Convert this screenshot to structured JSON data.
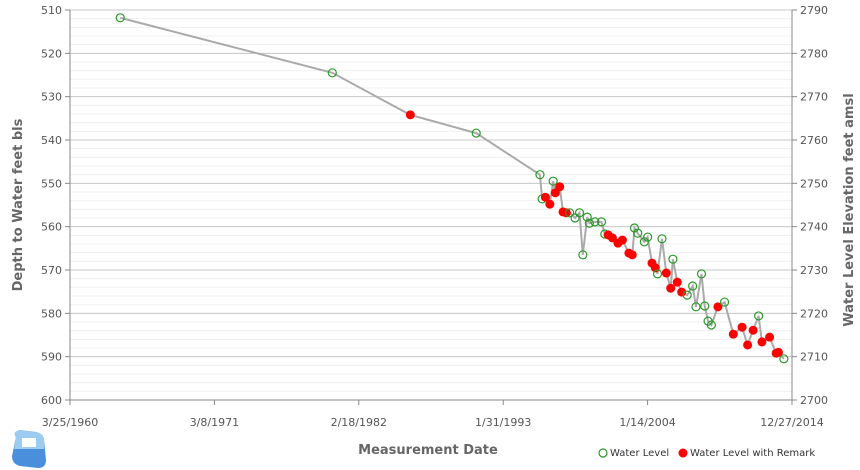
{
  "chart_data": {
    "type": "scatter",
    "xlabel": "Measurement Date",
    "ylabel": "Depth to Water feet bls",
    "y2label": "Water Level Elevation feet amsl",
    "xlim": [
      "1960-03-25",
      "2014-12-27"
    ],
    "xticks": [
      "3/25/1960",
      "3/8/1971",
      "2/18/1982",
      "1/31/1993",
      "1/14/2004",
      "12/27/2014"
    ],
    "xtick_dates": [
      "1960-03-25",
      "1971-03-08",
      "1982-02-18",
      "1993-01-31",
      "2004-01-14",
      "2014-12-27"
    ],
    "ylim": [
      510,
      600
    ],
    "y_inverted": true,
    "yticks": [
      510,
      520,
      530,
      540,
      550,
      560,
      570,
      580,
      590,
      600
    ],
    "y2lim": [
      2790,
      2700
    ],
    "y2ticks": [
      2790,
      2780,
      2770,
      2760,
      2750,
      2740,
      2730,
      2720,
      2710,
      2700
    ],
    "grid": true,
    "legend_position": "bottom-right",
    "series": [
      {
        "name": "Water Level",
        "color": "#2a9a2a",
        "marker": "open-circle"
      },
      {
        "name": "Water Level with Remark",
        "color": "#ff0000",
        "marker": "filled-circle"
      }
    ],
    "line_color": "#aaaaaa",
    "points": [
      [
        "1964-01",
        511.8,
        0
      ],
      [
        "1980-02",
        524.5,
        0
      ],
      [
        "1986-01",
        534.2,
        1
      ],
      [
        "1991-01",
        538.4,
        0
      ],
      [
        "1995-11",
        548.0,
        0
      ],
      [
        "1996-01",
        553.6,
        0
      ],
      [
        "1996-04",
        553.2,
        1
      ],
      [
        "1996-08",
        554.8,
        1
      ],
      [
        "1996-11",
        549.5,
        0
      ],
      [
        "1997-01",
        552.2,
        1
      ],
      [
        "1997-05",
        550.8,
        1
      ],
      [
        "1997-08",
        556.6,
        1
      ],
      [
        "1997-11",
        556.8,
        1
      ],
      [
        "1998-02",
        556.8,
        0
      ],
      [
        "1998-07",
        558.0,
        0
      ],
      [
        "1998-11",
        556.8,
        0
      ],
      [
        "1999-02",
        566.5,
        0
      ],
      [
        "1999-06",
        557.8,
        0
      ],
      [
        "1999-08",
        559.2,
        0
      ],
      [
        "2000-01",
        558.9,
        0
      ],
      [
        "2000-07",
        558.9,
        0
      ],
      [
        "2000-10",
        561.7,
        0
      ],
      [
        "2001-01",
        561.9,
        1
      ],
      [
        "2001-05",
        562.6,
        1
      ],
      [
        "2001-10",
        563.8,
        1
      ],
      [
        "2002-02",
        563.1,
        1
      ],
      [
        "2002-08",
        566.1,
        1
      ],
      [
        "2002-11",
        566.5,
        1
      ],
      [
        "2003-01",
        560.3,
        0
      ],
      [
        "2003-04",
        561.5,
        0
      ],
      [
        "2003-10",
        563.5,
        0
      ],
      [
        "2004-01",
        562.4,
        0
      ],
      [
        "2004-05",
        568.4,
        1
      ],
      [
        "2004-08",
        569.5,
        1
      ],
      [
        "2004-10",
        570.9,
        0
      ],
      [
        "2005-02",
        562.8,
        0
      ],
      [
        "2005-06",
        570.7,
        1
      ],
      [
        "2005-10",
        574.2,
        1
      ],
      [
        "2005-12",
        567.5,
        0
      ],
      [
        "2006-04",
        572.8,
        1
      ],
      [
        "2006-08",
        575.1,
        1
      ],
      [
        "2007-01",
        575.8,
        0
      ],
      [
        "2007-06",
        573.7,
        0
      ],
      [
        "2007-09",
        578.5,
        0
      ],
      [
        "2008-02",
        570.9,
        0
      ],
      [
        "2008-05",
        578.3,
        0
      ],
      [
        "2008-08",
        581.8,
        0
      ],
      [
        "2008-11",
        582.7,
        0
      ],
      [
        "2009-05",
        578.5,
        1
      ],
      [
        "2009-11",
        577.4,
        0
      ],
      [
        "2010-07",
        584.8,
        1
      ],
      [
        "2011-03",
        583.2,
        1
      ],
      [
        "2011-08",
        587.3,
        1
      ],
      [
        "2012-01",
        583.9,
        1
      ],
      [
        "2012-06",
        580.6,
        0
      ],
      [
        "2012-09",
        586.6,
        1
      ],
      [
        "2013-04",
        585.5,
        1
      ],
      [
        "2013-10",
        589.2,
        1
      ],
      [
        "2013-12",
        589.0,
        1
      ],
      [
        "2014-05",
        590.5,
        0
      ]
    ]
  },
  "logo": {
    "name": "water-drop-logo",
    "colors": [
      "#4a90d9",
      "#9ccaf0"
    ]
  }
}
